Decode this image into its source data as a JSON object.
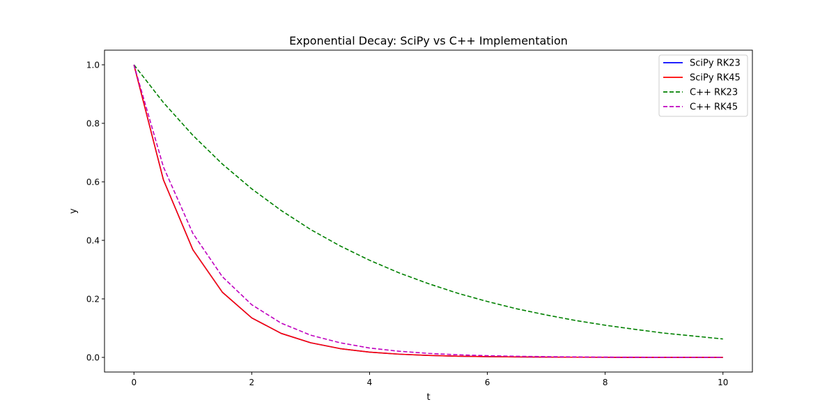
{
  "chart_data": {
    "type": "line",
    "title": "Exponential Decay: SciPy vs C++ Implementation",
    "xlabel": "t",
    "ylabel": "y",
    "xlim": [
      -0.5,
      10.5
    ],
    "ylim": [
      -0.05,
      1.05
    ],
    "xticks": [
      0,
      2,
      4,
      6,
      8,
      10
    ],
    "yticks": [
      0.0,
      0.2,
      0.4,
      0.6,
      0.8,
      1.0
    ],
    "xtick_labels": [
      "0",
      "2",
      "4",
      "6",
      "8",
      "10"
    ],
    "ytick_labels": [
      "0.0",
      "0.2",
      "0.4",
      "0.6",
      "0.8",
      "1.0"
    ],
    "grid": false,
    "legend_position": "top-right",
    "x": [
      0,
      0.5,
      1,
      1.5,
      2,
      2.5,
      3,
      3.5,
      4,
      4.5,
      5,
      5.5,
      6,
      6.5,
      7,
      7.5,
      8,
      8.5,
      9,
      9.5,
      10
    ],
    "series": [
      {
        "name": "SciPy RK23",
        "color": "#0000ff",
        "dash": "solid",
        "values": [
          1.0,
          0.607,
          0.368,
          0.223,
          0.135,
          0.082,
          0.05,
          0.03,
          0.018,
          0.011,
          0.0067,
          0.0041,
          0.0025,
          0.0015,
          0.0009,
          0.0006,
          0.0003,
          0.0002,
          0.0001,
          0.0001,
          0.0
        ]
      },
      {
        "name": "SciPy RK45",
        "color": "#ff0000",
        "dash": "solid",
        "values": [
          1.0,
          0.607,
          0.368,
          0.223,
          0.135,
          0.082,
          0.05,
          0.03,
          0.018,
          0.011,
          0.0067,
          0.0041,
          0.0025,
          0.0015,
          0.0009,
          0.0006,
          0.0003,
          0.0002,
          0.0001,
          0.0001,
          0.0
        ]
      },
      {
        "name": "C++ RK23",
        "color": "#008000",
        "dash": "dashed",
        "values": [
          1.0,
          0.871,
          0.759,
          0.661,
          0.576,
          0.502,
          0.437,
          0.381,
          0.332,
          0.289,
          0.252,
          0.219,
          0.191,
          0.166,
          0.145,
          0.126,
          0.11,
          0.096,
          0.083,
          0.073,
          0.063
        ]
      },
      {
        "name": "C++ RK45",
        "color": "#bf00bf",
        "dash": "dashed",
        "values": [
          1.0,
          0.651,
          0.424,
          0.276,
          0.18,
          0.117,
          0.076,
          0.05,
          0.032,
          0.021,
          0.0137,
          0.0089,
          0.0058,
          0.0038,
          0.0025,
          0.0016,
          0.001,
          0.0007,
          0.0004,
          0.0003,
          0.0002
        ]
      }
    ]
  }
}
